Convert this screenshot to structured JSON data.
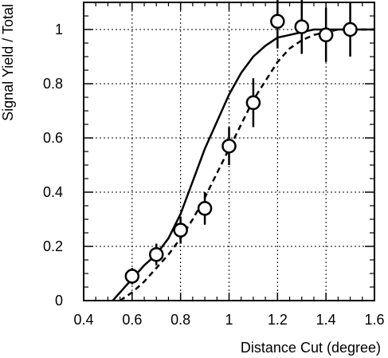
{
  "chart_data": {
    "type": "scatter",
    "xlabel": "Distance Cut (degree)",
    "ylabel": "Signal Yield / Total",
    "xlim": [
      0.4,
      1.6
    ],
    "ylim": [
      0,
      1.1
    ],
    "xticks": [
      "0.4",
      "0.6",
      "0.8",
      "1",
      "1.2",
      "1.4",
      "1.6"
    ],
    "yticks": [
      "0",
      "0.2",
      "0.4",
      "0.6",
      "0.8",
      "1"
    ],
    "grid": true,
    "series": [
      {
        "style": "markers-with-error-bars",
        "x": [
          0.6,
          0.7,
          0.8,
          0.9,
          1.0,
          1.1,
          1.2,
          1.3,
          1.4,
          1.5
        ],
        "y": [
          0.09,
          0.17,
          0.26,
          0.34,
          0.57,
          0.73,
          1.03,
          1.01,
          0.98,
          1.0
        ],
        "yerr": [
          0.03,
          0.04,
          0.05,
          0.06,
          0.07,
          0.09,
          0.1,
          0.1,
          0.1,
          0.1
        ]
      },
      {
        "style": "solid-line",
        "x": [
          0.52,
          0.55,
          0.6,
          0.65,
          0.7,
          0.75,
          0.8,
          0.85,
          0.9,
          0.95,
          1.0,
          1.05,
          1.1,
          1.15,
          1.2,
          1.25,
          1.3,
          1.35,
          1.4,
          1.45,
          1.5,
          1.55,
          1.6
        ],
        "y": [
          0.0,
          0.03,
          0.08,
          0.13,
          0.17,
          0.23,
          0.32,
          0.44,
          0.56,
          0.66,
          0.76,
          0.84,
          0.9,
          0.94,
          0.97,
          0.98,
          0.99,
          1.0,
          1.0,
          1.0,
          1.0,
          1.0,
          1.0
        ]
      },
      {
        "style": "dashed-line",
        "x": [
          0.55,
          0.6,
          0.65,
          0.7,
          0.75,
          0.8,
          0.85,
          0.9,
          0.95,
          1.0,
          1.05,
          1.1,
          1.15,
          1.2,
          1.25,
          1.3,
          1.35,
          1.4,
          1.45,
          1.5,
          1.55,
          1.6
        ],
        "y": [
          0.0,
          0.03,
          0.07,
          0.12,
          0.17,
          0.23,
          0.3,
          0.38,
          0.47,
          0.56,
          0.65,
          0.74,
          0.81,
          0.88,
          0.93,
          0.96,
          0.98,
          0.99,
          1.0,
          1.0,
          1.0,
          1.0
        ]
      }
    ]
  }
}
